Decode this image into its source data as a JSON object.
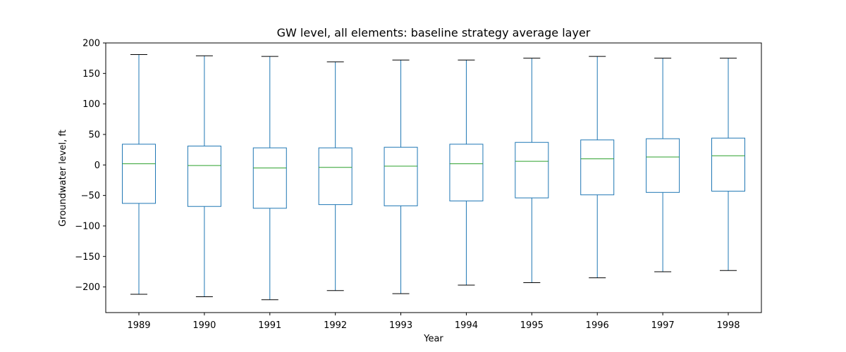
{
  "chart_data": {
    "type": "boxplot",
    "title": "GW level, all elements: baseline strategy average layer",
    "xlabel": "Year",
    "ylabel": "Groundwater level, ft",
    "ylim": [
      -242,
      200
    ],
    "yticks": [
      200,
      150,
      100,
      50,
      0,
      -50,
      -100,
      -150,
      -200
    ],
    "ytick_labels": [
      "200",
      "150",
      "100",
      "50",
      "0",
      "−50",
      "−100",
      "−150",
      "−200"
    ],
    "grid": false,
    "categories": [
      "1989",
      "1990",
      "1991",
      "1992",
      "1993",
      "1994",
      "1995",
      "1996",
      "1997",
      "1998"
    ],
    "boxes": [
      {
        "whisker_low": -212,
        "q1": -63,
        "median": 2,
        "q3": 34,
        "whisker_high": 181
      },
      {
        "whisker_low": -216,
        "q1": -68,
        "median": -1,
        "q3": 31,
        "whisker_high": 179
      },
      {
        "whisker_low": -221,
        "q1": -71,
        "median": -5,
        "q3": 28,
        "whisker_high": 178
      },
      {
        "whisker_low": -206,
        "q1": -65,
        "median": -4,
        "q3": 28,
        "whisker_high": 169
      },
      {
        "whisker_low": -211,
        "q1": -67,
        "median": -2,
        "q3": 29,
        "whisker_high": 172
      },
      {
        "whisker_low": -197,
        "q1": -59,
        "median": 2,
        "q3": 34,
        "whisker_high": 172
      },
      {
        "whisker_low": -193,
        "q1": -54,
        "median": 6,
        "q3": 37,
        "whisker_high": 175
      },
      {
        "whisker_low": -185,
        "q1": -49,
        "median": 10,
        "q3": 41,
        "whisker_high": 178
      },
      {
        "whisker_low": -175,
        "q1": -45,
        "median": 13,
        "q3": 43,
        "whisker_high": 175
      },
      {
        "whisker_low": -173,
        "q1": -43,
        "median": 15,
        "q3": 44,
        "whisker_high": 175
      }
    ],
    "colors": {
      "box": "#1f77b4",
      "median": "#2ca02c",
      "cap": "#000000",
      "axes": "#000000"
    }
  }
}
